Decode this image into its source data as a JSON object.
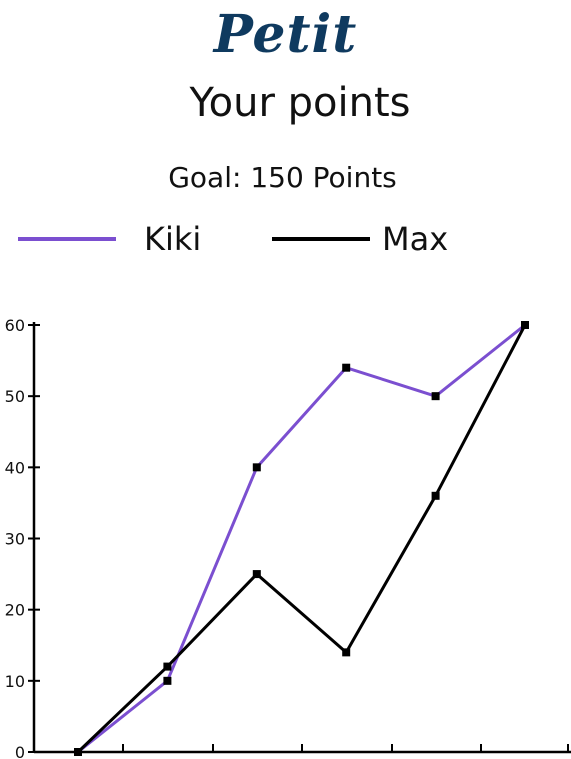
{
  "brand": {
    "logo_text": "Petit",
    "logo_color": "#0f3a5f"
  },
  "chart_data": {
    "type": "line",
    "title": "Your points",
    "subtitle": "Goal: 150 Points",
    "xlabel": "",
    "ylabel": "",
    "x": [
      0,
      1,
      2,
      3,
      4,
      5
    ],
    "x_tick_count": 6,
    "ylim": [
      0,
      60
    ],
    "yticks": [
      0,
      10,
      20,
      30,
      40,
      50,
      60
    ],
    "grid": false,
    "legend_position": "top",
    "series": [
      {
        "name": "Kiki",
        "color": "#7b4fd0",
        "values": [
          0,
          10,
          40,
          54,
          50,
          60
        ]
      },
      {
        "name": "Max",
        "color": "#000000",
        "values": [
          0,
          12,
          25,
          14,
          36,
          60
        ]
      }
    ]
  }
}
